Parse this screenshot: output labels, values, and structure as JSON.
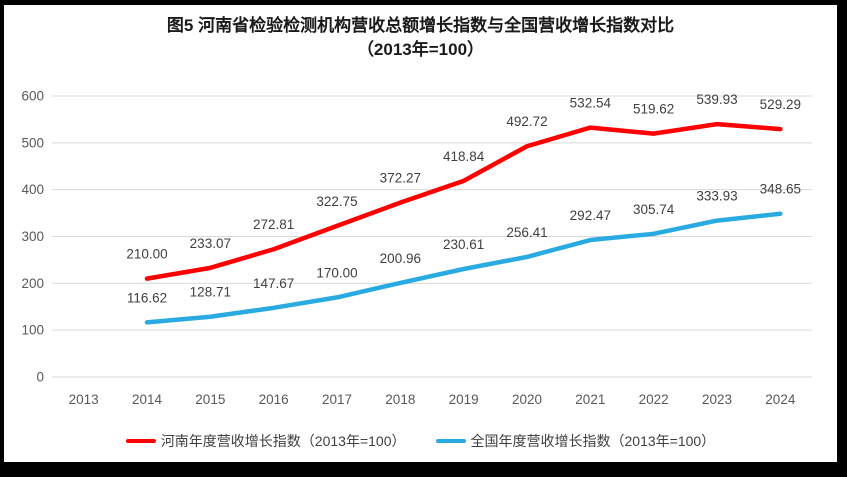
{
  "title": {
    "line1": "图5  河南省检验检测机构营收总额增长指数与全国营收增长指数对比",
    "line2": "（2013年=100）"
  },
  "colors": {
    "henan_line": "#FF0000",
    "national_line": "#29ABE2",
    "grid": "#D9D9D9",
    "axis_text": "#595959",
    "label_text": "#404040",
    "frame": "#000000"
  },
  "chart_data": {
    "type": "line",
    "title": "图5 河南省检验检测机构营收总额增长指数与全国营收增长指数对比（2013年=100）",
    "categories": [
      "2013",
      "2014",
      "2015",
      "2016",
      "2017",
      "2018",
      "2019",
      "2020",
      "2021",
      "2022",
      "2023",
      "2024"
    ],
    "series": [
      {
        "name": "河南年度营收增长指数（2013年=100）",
        "color": "#FF0000",
        "values": [
          null,
          210.0,
          233.07,
          272.81,
          322.75,
          372.27,
          418.84,
          492.72,
          532.54,
          519.62,
          539.93,
          529.29
        ]
      },
      {
        "name": "全国年度营收增长指数（2013年=100）",
        "color": "#29ABE2",
        "values": [
          null,
          116.62,
          128.71,
          147.67,
          170.0,
          200.96,
          230.61,
          256.41,
          292.47,
          305.74,
          333.93,
          348.65
        ]
      }
    ],
    "ylim": [
      0,
      600
    ],
    "ytick_step": 100,
    "yticks": [
      0,
      100,
      200,
      300,
      400,
      500,
      600
    ],
    "grid": true,
    "data_labels": "above, two decimals",
    "legend_position": "bottom"
  }
}
